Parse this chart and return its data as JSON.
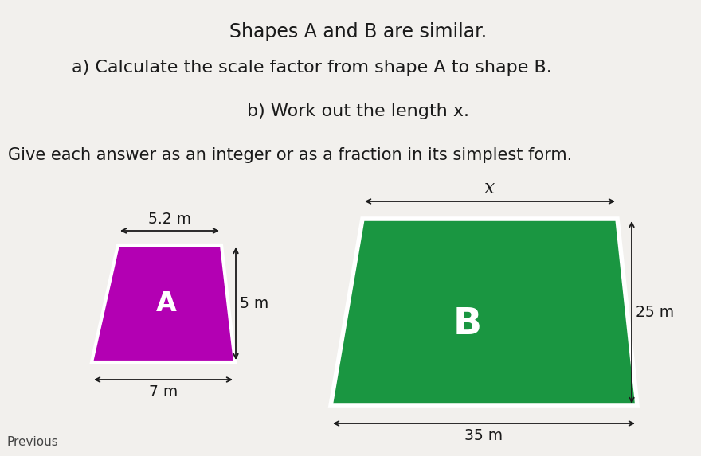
{
  "title_line1": "Shapes A and B are similar.",
  "question_a": "a) Calculate the scale factor from shape A to shape B.",
  "question_b_text": "b) Work out the length x.",
  "instruction": "Give each answer as an integer or as a fraction in its simplest form.",
  "previous_text": "Previous",
  "shape_A_color": "#b300b3",
  "shape_B_color": "#1a9641",
  "background_color": "#f2f0ed",
  "shape_A_label": "A",
  "shape_B_label": "B",
  "shape_A_top": "5.2 m",
  "shape_A_right": "5 m",
  "shape_A_bottom": "7 m",
  "shape_B_top": "x",
  "shape_B_right": "25 m",
  "shape_B_bottom": "35 m",
  "label_color": "#ffffff",
  "text_color": "#1a1a1a",
  "dim_color": "#1a1a1a",
  "title_fontsize": 17,
  "question_fontsize": 16,
  "instruction_fontsize": 15,
  "label_fontsize_A": 24,
  "label_fontsize_B": 34,
  "dim_fontsize": 13.5,
  "x_label_fontsize": 17
}
